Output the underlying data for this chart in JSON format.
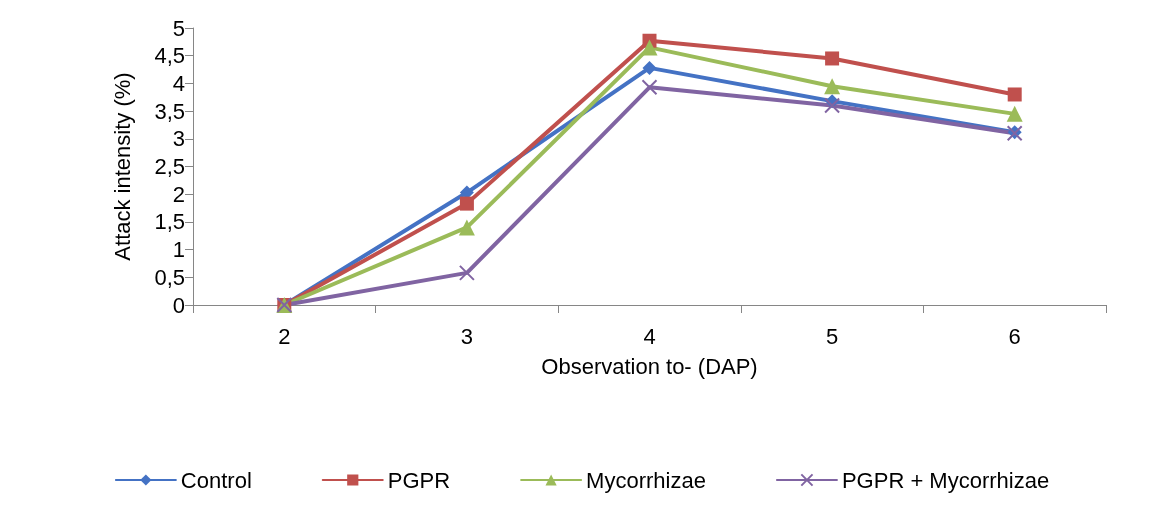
{
  "chart_data": {
    "type": "line",
    "xlabel": "Observation to- (DAP)",
    "ylabel": "Attack intensity (%)",
    "categories": [
      "2",
      "3",
      "4",
      "5",
      "6"
    ],
    "series": [
      {
        "name": "Control",
        "color": "#4472c4",
        "marker": "diamond",
        "values": [
          0,
          2.03,
          4.28,
          3.68,
          3.12
        ]
      },
      {
        "name": "PGPR",
        "color": "#c0504d",
        "marker": "square",
        "values": [
          0,
          1.83,
          4.77,
          4.45,
          3.8
        ]
      },
      {
        "name": "Mycorrhizae",
        "color": "#9bbb59",
        "marker": "triangle",
        "values": [
          0,
          1.4,
          4.65,
          3.95,
          3.45
        ]
      },
      {
        "name": "PGPR + Mycorrhizae",
        "color": "#8064a2",
        "marker": "cross",
        "values": [
          0,
          0.58,
          3.93,
          3.6,
          3.1
        ]
      }
    ],
    "ylim": [
      0,
      5
    ],
    "yticks": [
      0,
      {
        "value": 0.5,
        "label": "0,5"
      },
      1,
      {
        "value": 1.5,
        "label": "1,5"
      },
      2,
      {
        "value": 2.5,
        "label": "2,5"
      },
      3,
      {
        "value": 3.5,
        "label": "3,5"
      },
      4,
      {
        "value": 4.5,
        "label": "4,5"
      },
      5
    ],
    "grid": false,
    "legend": "bottom",
    "line_style": "solid"
  }
}
